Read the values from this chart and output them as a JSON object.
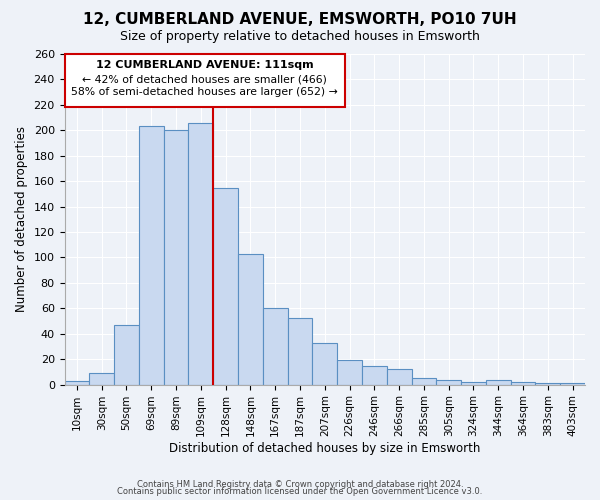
{
  "title": "12, CUMBERLAND AVENUE, EMSWORTH, PO10 7UH",
  "subtitle": "Size of property relative to detached houses in Emsworth",
  "xlabel": "Distribution of detached houses by size in Emsworth",
  "ylabel": "Number of detached properties",
  "bar_color": "#c9d9f0",
  "bar_edge_color": "#5a8fc2",
  "background_color": "#eef2f8",
  "grid_color": "#ffffff",
  "categories": [
    "10sqm",
    "30sqm",
    "50sqm",
    "69sqm",
    "89sqm",
    "109sqm",
    "128sqm",
    "148sqm",
    "167sqm",
    "187sqm",
    "207sqm",
    "226sqm",
    "246sqm",
    "266sqm",
    "285sqm",
    "305sqm",
    "324sqm",
    "344sqm",
    "364sqm",
    "383sqm",
    "403sqm"
  ],
  "values": [
    3,
    9,
    47,
    203,
    200,
    206,
    155,
    103,
    60,
    52,
    33,
    19,
    15,
    12,
    5,
    4,
    2,
    4,
    2,
    1,
    1
  ],
  "ylim": [
    0,
    260
  ],
  "yticks": [
    0,
    20,
    40,
    60,
    80,
    100,
    120,
    140,
    160,
    180,
    200,
    220,
    240,
    260
  ],
  "vline_color": "#cc0000",
  "vline_index": 5,
  "annotation_title": "12 CUMBERLAND AVENUE: 111sqm",
  "annotation_line1": "← 42% of detached houses are smaller (466)",
  "annotation_line2": "58% of semi-detached houses are larger (652) →",
  "footnote1": "Contains HM Land Registry data © Crown copyright and database right 2024.",
  "footnote2": "Contains public sector information licensed under the Open Government Licence v3.0."
}
